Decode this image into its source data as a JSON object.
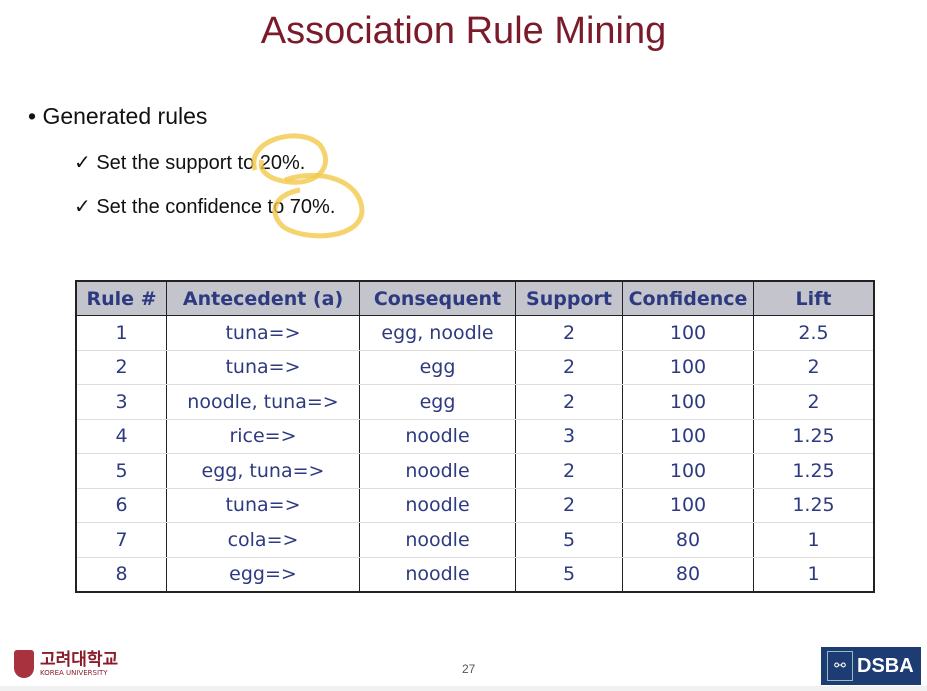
{
  "title": "Association Rule Mining",
  "bullet": "Generated rules",
  "subitems": [
    "Set the support to 20%.",
    "Set the confidence to 70%."
  ],
  "check_icon": "✓",
  "highlight_color": "#f2c94c",
  "table": {
    "headers": [
      "Rule #",
      "Antecedent (a)",
      "Consequent",
      "Support",
      "Confidence",
      "Lift"
    ],
    "rows": [
      [
        "1",
        "tuna=>",
        "egg, noodle",
        "2",
        "100",
        "2.5"
      ],
      [
        "2",
        "tuna=>",
        "egg",
        "2",
        "100",
        "2"
      ],
      [
        "3",
        "noodle, tuna=>",
        "egg",
        "2",
        "100",
        "2"
      ],
      [
        "4",
        "rice=>",
        "noodle",
        "3",
        "100",
        "1.25"
      ],
      [
        "5",
        "egg, tuna=>",
        "noodle",
        "2",
        "100",
        "1.25"
      ],
      [
        "6",
        "tuna=>",
        "noodle",
        "2",
        "100",
        "1.25"
      ],
      [
        "7",
        "cola=>",
        "noodle",
        "5",
        "80",
        "1"
      ],
      [
        "8",
        "egg=>",
        "noodle",
        "5",
        "80",
        "1"
      ]
    ]
  },
  "page_number": "27",
  "logos": {
    "university_kr": "고려대학교",
    "university_en": "KOREA UNIVERSITY",
    "lab": "DSBA"
  }
}
